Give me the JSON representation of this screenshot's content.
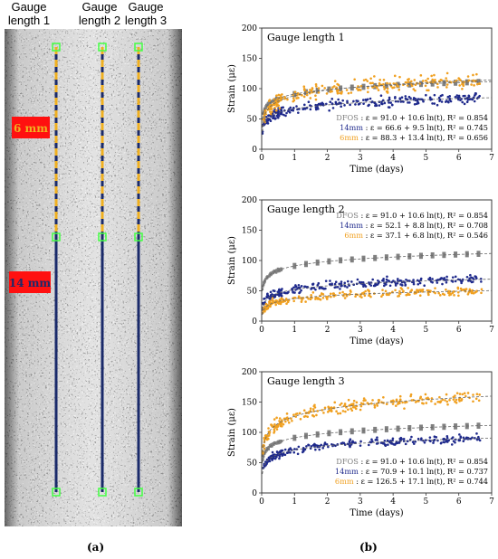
{
  "figure": {
    "gauge_headers": [
      "Gauge\nlength 1",
      "Gauge\nlength 2",
      "Gauge\nlength 3"
    ],
    "markers": {
      "six_mm": "6 mm",
      "fourteen_mm": "14 mm"
    },
    "panel_a": "(a)",
    "panel_b": "(b)",
    "colors": {
      "dfos": "#808080",
      "mm14": "#1f2a8c",
      "mm6": "#f0a020",
      "marker_bg": "#ff1010",
      "specimen_bg": "#9a9a9a",
      "fiber_blue": "#1a2a6a",
      "dash_orange": "#f0b020",
      "node_green": "#44ff44"
    }
  },
  "chart_data": [
    {
      "type": "scatter",
      "title": "Gauge length 1",
      "xlabel": "Time (days)",
      "ylabel": "Strain (με)",
      "xlim": [
        0,
        7
      ],
      "ylim": [
        0,
        200
      ],
      "xticks": [
        0,
        1,
        2,
        3,
        4,
        5,
        6,
        7
      ],
      "yticks": [
        0,
        50,
        100,
        150,
        200
      ],
      "grid": false,
      "legend_position": "bottom-right",
      "series": [
        {
          "name": "DFOS",
          "equation": ": ε = 91.0 + 10.6 ln(t), R² = 0.854",
          "color": "#808080",
          "fit_a": 91.0,
          "fit_b": 10.6,
          "noise": 4
        },
        {
          "name": "14mm",
          "equation": ": ε = 66.6 + 9.5 ln(t), R² = 0.745",
          "color": "#1f2a8c",
          "fit_a": 66.6,
          "fit_b": 9.5,
          "noise": 12
        },
        {
          "name": "6mm",
          "equation": ": ε = 88.3 + 13.4 ln(t), R² = 0.656",
          "color": "#f0a020",
          "fit_a": 88.3,
          "fit_b": 13.4,
          "noise": 18
        }
      ]
    },
    {
      "type": "scatter",
      "title": "Gauge length 2",
      "xlabel": "Time (days)",
      "ylabel": "Strain (με)",
      "xlim": [
        0,
        7
      ],
      "ylim": [
        0,
        200
      ],
      "xticks": [
        0,
        1,
        2,
        3,
        4,
        5,
        6,
        7
      ],
      "yticks": [
        0,
        50,
        100,
        150,
        200
      ],
      "grid": false,
      "legend_position": "top-right",
      "series": [
        {
          "name": "DFOS",
          "equation": ": ε = 91.0 + 10.6 ln(t), R² = 0.854",
          "color": "#808080",
          "fit_a": 91.0,
          "fit_b": 10.6,
          "noise": 4
        },
        {
          "name": "14mm",
          "equation": ": ε = 52.1 + 8.8 ln(t), R² = 0.708",
          "color": "#1f2a8c",
          "fit_a": 52.1,
          "fit_b": 8.8,
          "noise": 11
        },
        {
          "name": "6mm",
          "equation": ": ε = 37.1 + 6.8 ln(t), R² = 0.546",
          "color": "#f0a020",
          "fit_a": 37.1,
          "fit_b": 6.8,
          "noise": 10
        }
      ]
    },
    {
      "type": "scatter",
      "title": "Gauge length 3",
      "xlabel": "Time (days)",
      "ylabel": "Strain (με)",
      "xlim": [
        0,
        7
      ],
      "ylim": [
        0,
        200
      ],
      "xticks": [
        0,
        1,
        2,
        3,
        4,
        5,
        6,
        7
      ],
      "yticks": [
        0,
        50,
        100,
        150,
        200
      ],
      "grid": false,
      "legend_position": "bottom-right",
      "series": [
        {
          "name": "DFOS",
          "equation": ": ε = 91.0 + 10.6 ln(t), R² = 0.854",
          "color": "#808080",
          "fit_a": 91.0,
          "fit_b": 10.6,
          "noise": 4
        },
        {
          "name": "14mm",
          "equation": ": ε = 70.9 + 10.1 ln(t), R² = 0.737",
          "color": "#1f2a8c",
          "fit_a": 70.9,
          "fit_b": 10.1,
          "noise": 10
        },
        {
          "name": "6mm",
          "equation": ": ε = 126.5 + 17.1 ln(t), R² = 0.744",
          "color": "#f0a020",
          "fit_a": 126.5,
          "fit_b": 17.1,
          "noise": 14
        }
      ]
    }
  ]
}
